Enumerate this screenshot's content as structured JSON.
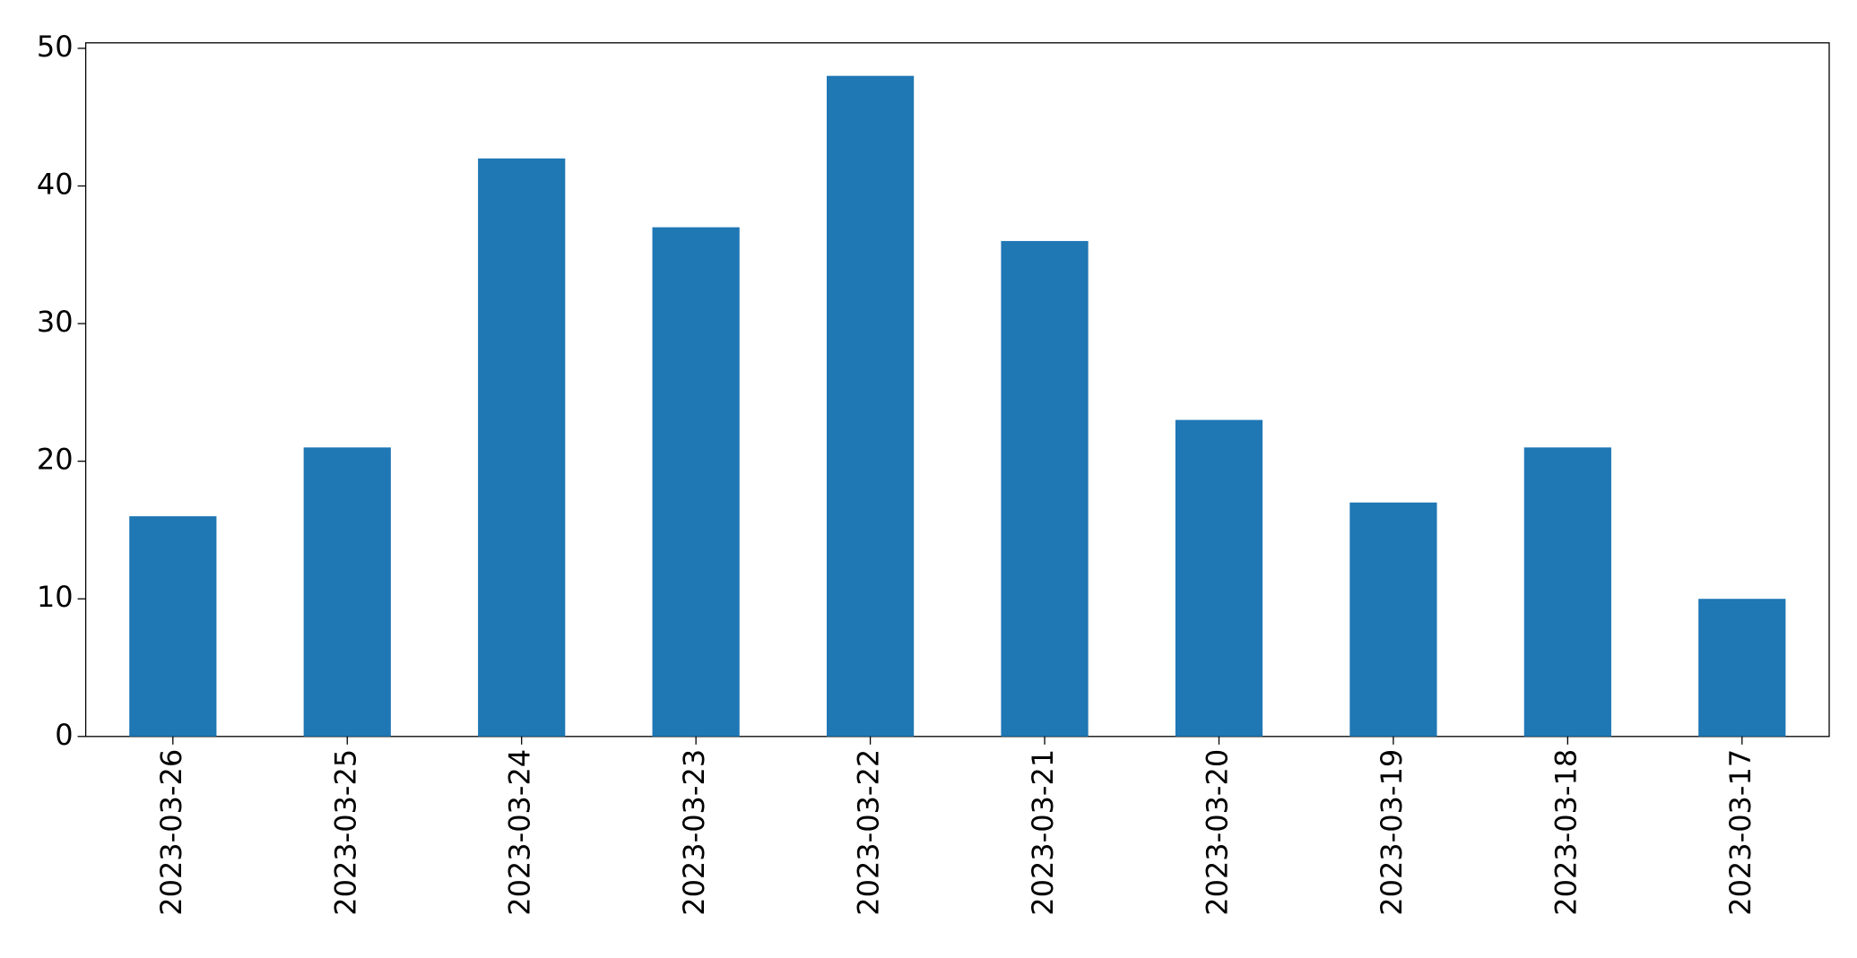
{
  "chart_data": {
    "type": "bar",
    "categories": [
      "2023-03-26",
      "2023-03-25",
      "2023-03-24",
      "2023-03-23",
      "2023-03-22",
      "2023-03-21",
      "2023-03-20",
      "2023-03-19",
      "2023-03-18",
      "2023-03-17"
    ],
    "values": [
      16,
      21,
      42,
      37,
      48,
      36,
      23,
      17,
      21,
      10
    ],
    "color": "#1f77b4",
    "ylim": [
      0,
      50.4
    ],
    "yticks": [
      0,
      10,
      20,
      30,
      40,
      50
    ],
    "grid": false
  }
}
